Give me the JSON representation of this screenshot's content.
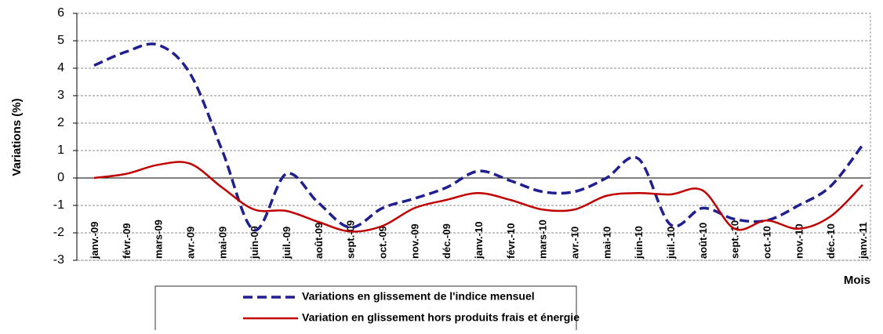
{
  "chart_data": {
    "type": "line",
    "y_label": "Variations (%)",
    "x_label": "Mois",
    "categories": [
      "janv.-09",
      "févr.-09",
      "mars-09",
      "avr.-09",
      "mai-09",
      "juin-09",
      "juil.-09",
      "août-09",
      "sept.-09",
      "oct.-09",
      "nov.-09",
      "déc.-09",
      "janv.-10",
      "févr.-10",
      "mars-10",
      "avr.-10",
      "mai-10",
      "juin-10",
      "juil.-10",
      "août-10",
      "sept.-10",
      "oct.-10",
      "nov.-10",
      "déc.-10",
      "janv.-11"
    ],
    "series": [
      {
        "name": "Variations en glissement de l'indice mensuel",
        "color": "#1f1f8f",
        "dashed": true,
        "values": [
          4.1,
          4.6,
          4.85,
          3.8,
          1.0,
          -1.9,
          0.15,
          -0.9,
          -1.8,
          -1.1,
          -0.75,
          -0.35,
          0.25,
          -0.1,
          -0.5,
          -0.5,
          0.0,
          0.7,
          -1.7,
          -1.1,
          -1.5,
          -1.55,
          -1.0,
          -0.3,
          1.2
        ]
      },
      {
        "name": "Variation en glissement hors produits frais et énergie",
        "color": "#c00000",
        "dashed": false,
        "values": [
          0,
          0.15,
          0.48,
          0.52,
          -0.35,
          -1.15,
          -1.2,
          -1.6,
          -1.95,
          -1.75,
          -1.1,
          -0.8,
          -0.55,
          -0.8,
          -1.15,
          -1.15,
          -0.65,
          -0.55,
          -0.6,
          -0.45,
          -1.85,
          -1.55,
          -1.85,
          -1.4,
          -0.25
        ]
      }
    ],
    "ylim": [
      -3,
      6
    ],
    "yticks": [
      -3,
      -2,
      -1,
      0,
      1,
      2,
      3,
      4,
      5,
      6
    ],
    "grid": true,
    "smooth": true
  }
}
